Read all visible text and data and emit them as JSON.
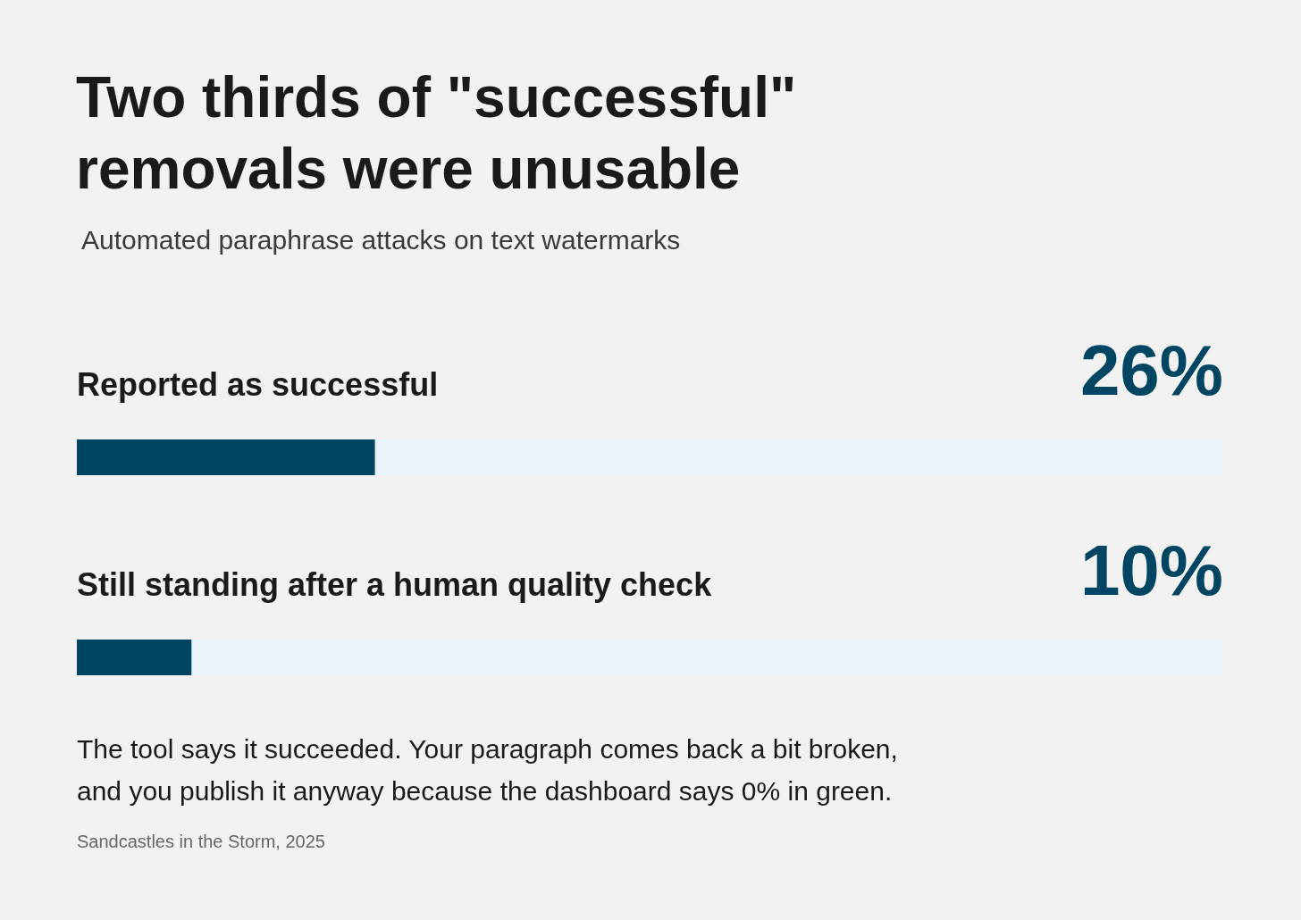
{
  "chart_data": {
    "type": "bar",
    "orientation": "horizontal",
    "title": "Two thirds of \"successful\" removals were unusable",
    "subtitle": "Automated paraphrase attacks on text watermarks",
    "categories": [
      "Reported as successful",
      "Still standing after a human quality check"
    ],
    "values": [
      26,
      10
    ],
    "value_labels": [
      "26%",
      "10%"
    ],
    "color": "#004562",
    "xlim": [
      0,
      100
    ],
    "tick_labels": "y",
    "annotations": [
      "The tool says it succeeded. Your paragraph comes back a bit broken, and you publish it anyway because the dashboard says 0% in green.",
      "Sandcastles in the Storm, 2025"
    ]
  }
}
